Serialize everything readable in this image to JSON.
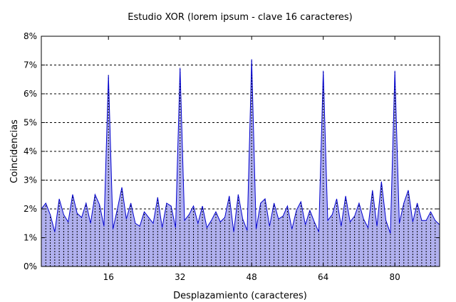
{
  "chart_data": {
    "type": "area",
    "title": "Estudio XOR (lorem ipsum - clave 16 caracteres)",
    "xlabel": "Desplazamiento (caracteres)",
    "ylabel": "Coincidencias",
    "xlim": [
      1,
      90
    ],
    "ylim": [
      0,
      8
    ],
    "x_ticks": [
      16,
      32,
      48,
      64,
      80
    ],
    "x_tick_labels": [
      "16",
      "32",
      "48",
      "64",
      "80"
    ],
    "y_ticks": [
      0,
      1,
      2,
      3,
      4,
      5,
      6,
      7,
      8
    ],
    "y_tick_labels": [
      "0%",
      "1%",
      "2%",
      "3%",
      "4%",
      "5%",
      "6%",
      "7%",
      "8%"
    ],
    "grid": "horizontal-dashed",
    "legend": "none",
    "colors": {
      "fill": "#b0b0ee",
      "line": "#0000cc",
      "grid": "#000000"
    },
    "series": [
      {
        "x": [
          1,
          2,
          3,
          4,
          5,
          6,
          7,
          8,
          9,
          10,
          11,
          12,
          13,
          14,
          15,
          16,
          17,
          18,
          19,
          20,
          21,
          22,
          23,
          24,
          25,
          26,
          27,
          28,
          29,
          30,
          31,
          32,
          33,
          34,
          35,
          36,
          37,
          38,
          39,
          40,
          41,
          42,
          43,
          44,
          45,
          46,
          47,
          48,
          49,
          50,
          51,
          52,
          53,
          54,
          55,
          56,
          57,
          58,
          59,
          60,
          61,
          62,
          63,
          64,
          65,
          66,
          67,
          68,
          69,
          70,
          71,
          72,
          73,
          74,
          75,
          76,
          77,
          78,
          79,
          80,
          81,
          82,
          83,
          84,
          85,
          86,
          87,
          88,
          89,
          90
        ],
        "values": [
          2.0,
          2.2,
          1.8,
          1.2,
          2.35,
          1.8,
          1.55,
          2.5,
          1.85,
          1.7,
          2.2,
          1.5,
          2.5,
          2.15,
          1.4,
          6.65,
          1.3,
          2.0,
          2.75,
          1.65,
          2.2,
          1.5,
          1.4,
          1.9,
          1.7,
          1.5,
          2.4,
          1.35,
          2.2,
          2.1,
          1.35,
          6.9,
          1.6,
          1.8,
          2.1,
          1.5,
          2.1,
          1.35,
          1.6,
          1.9,
          1.55,
          1.7,
          2.45,
          1.2,
          2.5,
          1.65,
          1.25,
          7.2,
          1.3,
          2.2,
          2.35,
          1.4,
          2.2,
          1.65,
          1.75,
          2.1,
          1.3,
          1.95,
          2.25,
          1.45,
          1.95,
          1.55,
          1.2,
          6.8,
          1.6,
          1.8,
          2.35,
          1.4,
          2.45,
          1.55,
          1.75,
          2.2,
          1.65,
          1.35,
          2.65,
          1.4,
          2.95,
          1.6,
          1.15,
          6.8,
          1.5,
          2.2,
          2.65,
          1.55,
          2.2,
          1.6,
          1.6,
          1.9,
          1.6,
          1.45
        ]
      }
    ]
  }
}
